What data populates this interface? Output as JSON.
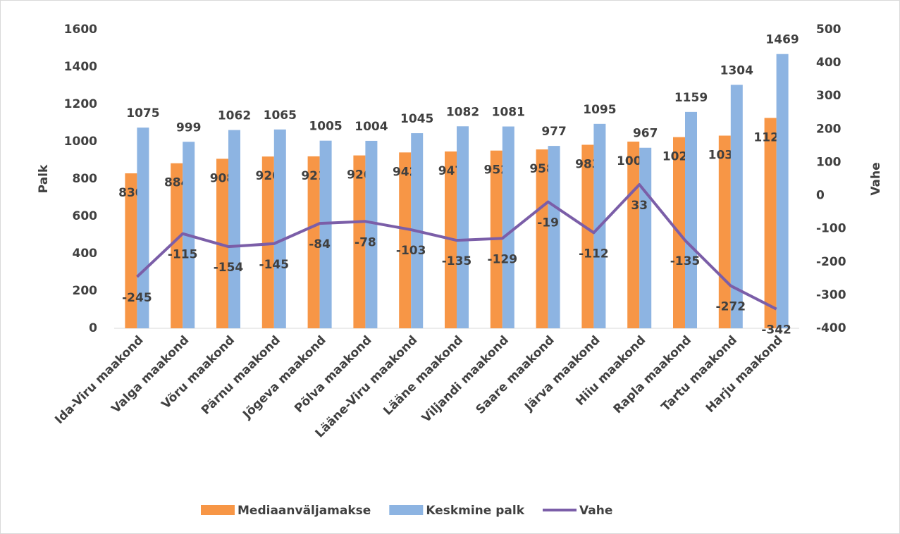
{
  "chart_data": {
    "type": "bar",
    "categories": [
      "Ida-Viru maakond",
      "Valga maakond",
      "Võru maakond",
      "Pärnu maakond",
      "Jõgeva maakond",
      "Põlva maakond",
      "Lääne-Viru maakond",
      "Lääne maakond",
      "Viljandi maakond",
      "Saare maakond",
      "Järva maakond",
      "Hiiu maakond",
      "Rapla maakond",
      "Tartu maakond",
      "Harju maakond"
    ],
    "series": [
      {
        "name": "Mediaanväljamakse",
        "color": "#f79646",
        "values": [
          830,
          884,
          908,
          920,
          921,
          926,
          942,
          947,
          952,
          958,
          983,
          1000,
          1024,
          1032,
          1127
        ]
      },
      {
        "name": "Keskmine palk",
        "color": "#8db4e2",
        "values": [
          1075,
          999,
          1062,
          1065,
          1005,
          1004,
          1045,
          1082,
          1081,
          977,
          1095,
          967,
          1159,
          1304,
          1469
        ]
      },
      {
        "name": "Vahe",
        "color": "#7b5ea8",
        "type": "line",
        "axis": "y2",
        "values": [
          -245,
          -115,
          -154,
          -145,
          -84,
          -78,
          -103,
          -135,
          -129,
          -19,
          -112,
          33,
          -135,
          -272,
          -342
        ]
      }
    ],
    "ylabel": "Palk",
    "y2label": "Vahe",
    "ylim": [
      0,
      1600
    ],
    "yticks": [
      0,
      200,
      400,
      600,
      800,
      1000,
      1200,
      1400,
      1600
    ],
    "y2lim": [
      -400,
      500
    ],
    "y2ticks": [
      -400,
      -300,
      -200,
      -100,
      0,
      100,
      200,
      300,
      400,
      500
    ],
    "legend": "bottom"
  }
}
